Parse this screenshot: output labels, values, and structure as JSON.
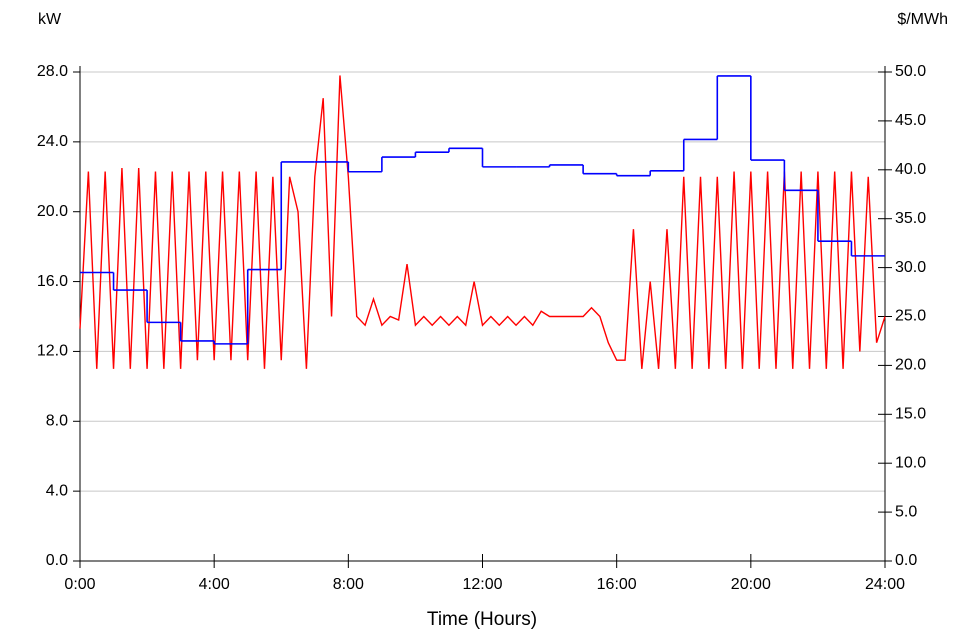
{
  "chart_data": {
    "type": "line",
    "ylabel": "kW",
    "y2label": "$/MWh",
    "xlabel": "Time (Hours)",
    "xlim": [
      0,
      24
    ],
    "xticks": [
      {
        "value": 0,
        "label": "0:00"
      },
      {
        "value": 4,
        "label": "4:00"
      },
      {
        "value": 8,
        "label": "8:00"
      },
      {
        "value": 12,
        "label": "12:00"
      },
      {
        "value": 16,
        "label": "16:00"
      },
      {
        "value": 20,
        "label": "20:00"
      },
      {
        "value": 24,
        "label": "24:00"
      }
    ],
    "ylim": [
      0,
      28
    ],
    "yticks": [
      {
        "value": 0,
        "label": "0.0"
      },
      {
        "value": 4,
        "label": "4.0"
      },
      {
        "value": 8,
        "label": "8.0"
      },
      {
        "value": 12,
        "label": "12.0"
      },
      {
        "value": 16,
        "label": "16.0"
      },
      {
        "value": 20,
        "label": "20.0"
      },
      {
        "value": 24,
        "label": "24.0"
      },
      {
        "value": 28,
        "label": "28.0"
      }
    ],
    "y2lim": [
      0,
      50
    ],
    "y2ticks": [
      {
        "value": 0,
        "label": "0.0"
      },
      {
        "value": 5,
        "label": "5.0"
      },
      {
        "value": 10,
        "label": "10.0"
      },
      {
        "value": 15,
        "label": "15.0"
      },
      {
        "value": 20,
        "label": "20.0"
      },
      {
        "value": 25,
        "label": "25.0"
      },
      {
        "value": 30,
        "label": "30.0"
      },
      {
        "value": 35,
        "label": "35.0"
      },
      {
        "value": 40,
        "label": "40.0"
      },
      {
        "value": 45,
        "label": "45.0"
      },
      {
        "value": 50,
        "label": "50.0"
      }
    ],
    "grid": true,
    "series": [
      {
        "color": "#ff0000",
        "x": [
          0,
          0.25,
          0.5,
          0.75,
          1,
          1.25,
          1.5,
          1.75,
          2,
          2.25,
          2.5,
          2.75,
          3,
          3.25,
          3.5,
          3.75,
          4,
          4.25,
          4.5,
          4.75,
          5,
          5.25,
          5.5,
          5.75,
          6,
          6.25,
          6.5,
          6.75,
          7,
          7.25,
          7.5,
          7.75,
          8,
          8.25,
          8.5,
          8.75,
          9,
          9.25,
          9.5,
          9.75,
          10,
          10.25,
          10.5,
          10.75,
          11,
          11.25,
          11.5,
          11.75,
          12,
          12.25,
          12.5,
          12.75,
          13,
          13.25,
          13.5,
          13.75,
          14,
          14.25,
          14.5,
          14.75,
          15,
          15.25,
          15.5,
          15.75,
          16,
          16.25,
          16.5,
          16.75,
          17,
          17.25,
          17.5,
          17.75,
          18,
          18.25,
          18.5,
          18.75,
          19,
          19.25,
          19.5,
          19.75,
          20,
          20.25,
          20.5,
          20.75,
          21,
          21.25,
          21.5,
          21.75,
          22,
          22.25,
          22.5,
          22.75,
          23,
          23.25,
          23.5,
          23.75,
          24
        ],
        "values": [
          13.3,
          22.3,
          11.0,
          22.3,
          11.0,
          22.5,
          11.0,
          22.5,
          11.0,
          22.3,
          11.0,
          22.3,
          11.0,
          22.3,
          11.5,
          22.3,
          11.5,
          22.3,
          11.5,
          22.3,
          11.5,
          22.3,
          11.0,
          22.0,
          11.5,
          22.0,
          20.0,
          11.0,
          22.0,
          26.5,
          14.0,
          27.8,
          22.0,
          14.0,
          13.5,
          15.0,
          13.5,
          14.0,
          13.8,
          17.0,
          13.5,
          14.0,
          13.5,
          14.0,
          13.5,
          14.0,
          13.5,
          16.0,
          13.5,
          14.0,
          13.5,
          14.0,
          13.5,
          14.0,
          13.5,
          14.3,
          14.0,
          14.0,
          14.0,
          14.0,
          14.0,
          14.5,
          14.0,
          12.5,
          11.5,
          11.5,
          19.0,
          11.0,
          16.0,
          11.0,
          19.0,
          11.0,
          22.0,
          11.0,
          22.0,
          11.0,
          22.0,
          11.0,
          22.3,
          11.0,
          22.3,
          11.0,
          22.3,
          11.0,
          22.3,
          11.0,
          22.3,
          11.0,
          22.3,
          11.0,
          22.3,
          11.0,
          22.3,
          12.0,
          22.0,
          12.5,
          14.0
        ]
      },
      {
        "color": "#0000ff",
        "axis": "y2",
        "step": "post",
        "x": [
          0,
          1,
          2,
          3,
          4,
          5,
          6,
          7,
          8,
          9,
          10,
          11,
          12,
          13,
          14,
          15,
          16,
          17,
          18,
          19,
          20,
          21,
          22,
          23
        ],
        "values": [
          29.5,
          27.7,
          24.4,
          22.5,
          22.2,
          29.8,
          40.8,
          40.8,
          39.8,
          41.3,
          41.8,
          42.2,
          40.3,
          40.3,
          40.5,
          39.6,
          39.4,
          39.9,
          43.1,
          49.6,
          41.0,
          37.9,
          32.7,
          31.2
        ]
      }
    ]
  }
}
